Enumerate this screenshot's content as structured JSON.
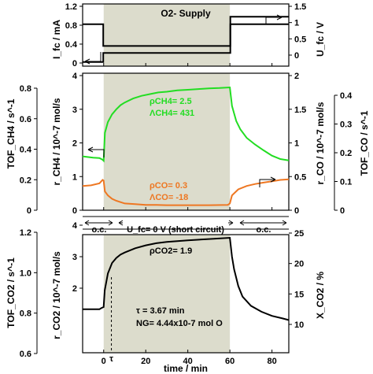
{
  "chart_data": [
    {
      "type": "line",
      "panel": "top",
      "annotation": "O2- Supply",
      "x_range": [
        -10,
        88
      ],
      "y_left": {
        "label": "I_fc / mA",
        "ylim": [
          0,
          1.2
        ],
        "ticks": [
          "0",
          "0.4",
          "0.8",
          "1.2"
        ]
      },
      "y_right": {
        "label": "U_fc / V",
        "ylim": [
          -0.3,
          1.5
        ],
        "ticks": [
          "0",
          "0.5",
          "1",
          "1.5"
        ]
      },
      "series": [
        {
          "axis": "left",
          "color": "#000000",
          "x": [
            -10,
            -0.2,
            -0.2,
            60.2,
            60.2,
            88
          ],
          "y": [
            0.82,
            0.82,
            0.36,
            0.36,
            0.82,
            0.82
          ]
        },
        {
          "axis": "right",
          "color": "#000000",
          "x": [
            -10,
            -0.2,
            -0.2,
            60.2,
            60.2,
            88
          ],
          "y": [
            -0.27,
            -0.27,
            0.02,
            0.02,
            1.17,
            1.17
          ]
        }
      ]
    },
    {
      "type": "line",
      "panel": "middle",
      "x_range": [
        -10,
        88
      ],
      "y_left": {
        "label": "r_CH4 / 10^-7 mol/s",
        "ylim": [
          0,
          4
        ],
        "ticks": [
          "0",
          "1",
          "2",
          "3",
          "4"
        ]
      },
      "y_right": {
        "label": "r_CO / 10^-7 mol/s",
        "ylim": [
          0,
          2
        ],
        "ticks": [
          "0",
          "0.5",
          "1",
          "1.5",
          "2"
        ]
      },
      "y_outer_left": {
        "label": "TOF_CH4 / s^-1",
        "ticks": [
          "0",
          "0.2",
          "0.4",
          "0.6",
          "0.8"
        ]
      },
      "y_outer_right": {
        "label": "TOF_CO / s^-1",
        "ticks": [
          "0",
          "0.1",
          "0.2",
          "0.3",
          "0.4"
        ]
      },
      "annotations": [
        "ρCH4= 2.5",
        "ΛCH4= 431",
        "ρCO= 0.3",
        "ΛCO= -18"
      ],
      "series": [
        {
          "name": "CH4",
          "axis": "left",
          "color": "#22dd22",
          "x": [
            -10,
            -5,
            -2,
            -0.5,
            0,
            0.6,
            2,
            4,
            6,
            8,
            10,
            14,
            18,
            22,
            26,
            30,
            35,
            40,
            45,
            50,
            55,
            60,
            61,
            63,
            65,
            68,
            72,
            76,
            80,
            84,
            88
          ],
          "y": [
            1.6,
            1.56,
            1.55,
            1.5,
            1.47,
            2.3,
            2.62,
            2.85,
            3.0,
            3.12,
            3.2,
            3.32,
            3.4,
            3.45,
            3.5,
            3.52,
            3.56,
            3.58,
            3.6,
            3.62,
            3.63,
            3.65,
            3.1,
            2.65,
            2.4,
            2.15,
            1.95,
            1.78,
            1.62,
            1.52,
            1.48
          ]
        },
        {
          "name": "CO",
          "axis": "right",
          "color": "#ee7722",
          "x": [
            -10,
            -6,
            -2,
            -0.5,
            0,
            0.6,
            2,
            4,
            6,
            8,
            10,
            15,
            20,
            25,
            30,
            40,
            50,
            59,
            60,
            61,
            64,
            68,
            72,
            76,
            80,
            84,
            88
          ],
          "y": [
            0.36,
            0.37,
            0.4,
            0.45,
            0.44,
            0.28,
            0.22,
            0.17,
            0.14,
            0.12,
            0.1,
            0.09,
            0.08,
            0.08,
            0.075,
            0.075,
            0.075,
            0.08,
            0.1,
            0.22,
            0.31,
            0.36,
            0.39,
            0.41,
            0.43,
            0.45,
            0.46
          ]
        }
      ]
    },
    {
      "type": "line",
      "panel": "bottom",
      "x_range": [
        -10,
        88
      ],
      "xlabel": "time / min",
      "x_ticks": [
        "0",
        "20",
        "40",
        "60",
        "80"
      ],
      "x_tick_values": [
        0,
        20,
        40,
        60,
        80
      ],
      "tau_label": "τ",
      "tau_x": 3.67,
      "y_left": {
        "label": "r_CO2 / 10^-7 mol/s",
        "ylim": [
          1,
          4.25
        ],
        "ticks": [
          "2",
          "3",
          "4"
        ]
      },
      "y_right": {
        "label": "X_CO2 / %",
        "ticks": [
          "10",
          "15",
          "20",
          "25"
        ]
      },
      "y_outer_left": {
        "label": "TOF_CO2 / s^-1",
        "ticks": [
          "0.6",
          "0.8",
          "1.0",
          "1.2"
        ]
      },
      "regimes": [
        "o.c.",
        "U_fc= 0 V (short circuit)",
        "o.c."
      ],
      "annotations": [
        "ρCO2= 1.9",
        "τ = 3.67 min",
        "NG= 4.44x10-7 mol O"
      ],
      "series": [
        {
          "name": "CO2",
          "axis": "left",
          "color": "#000000",
          "x": [
            -10,
            -5,
            -2,
            -1,
            0,
            0.5,
            2,
            4,
            6,
            8,
            10,
            15,
            20,
            25,
            30,
            40,
            50,
            60,
            61,
            62,
            64,
            66,
            70,
            75,
            80,
            85,
            88
          ],
          "y": [
            2.0,
            2.0,
            2.0,
            2.03,
            2.05,
            2.45,
            2.85,
            3.1,
            3.22,
            3.3,
            3.35,
            3.45,
            3.52,
            3.57,
            3.6,
            3.64,
            3.67,
            3.7,
            3.25,
            2.95,
            2.55,
            2.3,
            2.08,
            1.94,
            1.84,
            1.78,
            1.74
          ]
        }
      ]
    }
  ]
}
